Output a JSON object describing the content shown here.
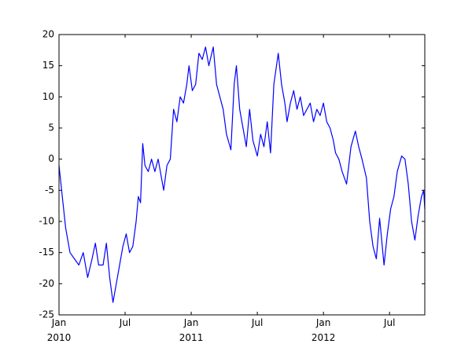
{
  "chart_data": {
    "type": "line",
    "x": [
      0,
      0.3,
      0.6,
      1,
      1.4,
      1.8,
      2.2,
      2.6,
      3,
      3.3,
      3.6,
      4,
      4.3,
      4.6,
      4.9,
      5.2,
      5.5,
      5.8,
      6.1,
      6.4,
      6.7,
      7,
      7.2,
      7.4,
      7.6,
      7.8,
      8.1,
      8.4,
      8.7,
      9,
      9.3,
      9.5,
      9.8,
      10.1,
      10.4,
      10.7,
      11,
      11.3,
      11.6,
      11.8,
      12.1,
      12.4,
      12.7,
      13,
      13.3,
      13.6,
      14,
      14.3,
      14.6,
      14.9,
      15.2,
      15.6,
      15.9,
      16.1,
      16.4,
      16.7,
      17,
      17.3,
      17.6,
      18,
      18.3,
      18.6,
      18.9,
      19.2,
      19.5,
      19.9,
      20.2,
      20.5,
      20.7,
      21,
      21.3,
      21.6,
      21.9,
      22.2,
      22.5,
      22.8,
      23.1,
      23.4,
      23.7,
      24,
      24.3,
      24.6,
      24.9,
      25.1,
      25.4,
      25.7,
      26.1,
      26.5,
      26.9,
      27.2,
      27.5,
      27.9,
      28.2,
      28.5,
      28.8,
      29.1,
      29.5,
      29.8,
      30.1,
      30.4,
      30.7,
      31.1,
      31.4,
      31.7,
      32,
      32.3,
      32.6,
      32.9,
      33.1,
      33.2
    ],
    "series": [
      {
        "color": "#0000ff",
        "values": [
          -1,
          -6,
          -11,
          -15,
          -16,
          -17,
          -15,
          -19,
          -16,
          -13.5,
          -17,
          -17,
          -13.5,
          -19,
          -23,
          -20,
          -17,
          -14,
          -12,
          -15,
          -14,
          -10,
          -6,
          -7,
          2.5,
          -1,
          -2,
          0,
          -2,
          0,
          -3,
          -5,
          -1,
          0,
          8,
          6,
          10,
          9,
          12,
          15,
          11,
          12,
          17,
          16,
          18,
          15,
          18,
          12,
          10,
          8,
          4,
          1.5,
          12,
          15,
          8,
          5,
          2,
          8,
          3,
          0.5,
          4,
          2,
          6,
          1,
          12,
          17,
          12,
          9,
          6,
          9,
          11,
          8,
          10,
          7,
          8,
          9,
          6,
          8,
          7,
          9,
          6,
          5,
          3,
          1,
          0,
          -2,
          -4,
          2,
          4.5,
          2,
          0,
          -3,
          -10,
          -14,
          -16,
          -9.5,
          -17,
          -12,
          -8,
          -6,
          -2,
          0.5,
          0,
          -4,
          -10,
          -13,
          -9,
          -6,
          -5,
          -8
        ]
      }
    ],
    "xlim": [
      0,
      33.2
    ],
    "xticks": [
      {
        "value": 0,
        "label": "Jan 2010"
      },
      {
        "value": 6,
        "label": "Jul"
      },
      {
        "value": 12,
        "label": "Jan 2011"
      },
      {
        "value": 18,
        "label": "Jul"
      },
      {
        "value": 24,
        "label": "Jan 2012"
      },
      {
        "value": 30,
        "label": "Jul"
      }
    ],
    "ylim": [
      -25,
      20
    ],
    "yticks": [
      -25,
      -20,
      -15,
      -10,
      -5,
      0,
      5,
      10,
      15,
      20
    ]
  }
}
